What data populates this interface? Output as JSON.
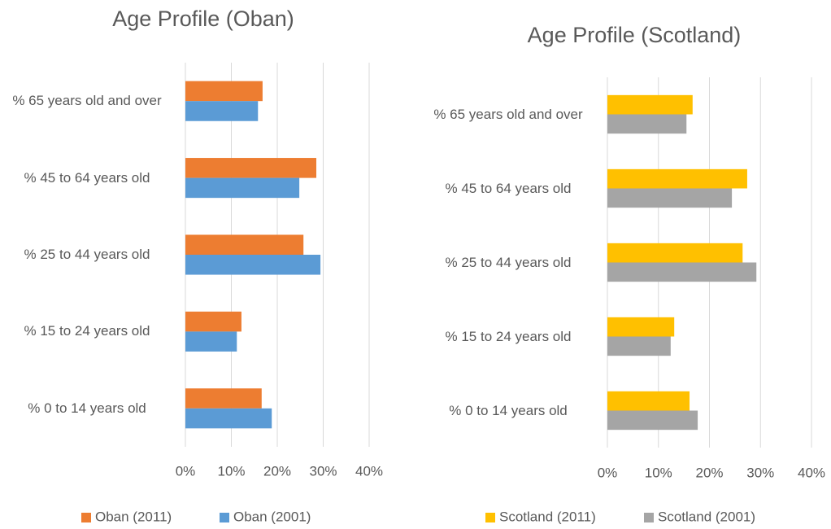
{
  "chart_data": [
    {
      "type": "bar",
      "orientation": "horizontal",
      "title": "Age Profile (Oban)",
      "categories": [
        "% 65 years old and over",
        "% 45 to 64 years old",
        "% 25 to 44 years old",
        "% 15 to 24 years old",
        "% 0 to 14 years old"
      ],
      "series": [
        {
          "name": "Oban (2011)",
          "color": "#ed7d31",
          "values": [
            16.8,
            28.5,
            25.7,
            12.2,
            16.6
          ]
        },
        {
          "name": "Oban (2001)",
          "color": "#5b9bd5",
          "values": [
            15.8,
            24.8,
            29.4,
            11.2,
            18.8
          ]
        }
      ],
      "xlim": [
        0,
        40
      ],
      "xticks": [
        {
          "value": 0,
          "label": "0%"
        },
        {
          "value": 10,
          "label": "10%"
        },
        {
          "value": 20,
          "label": "20%"
        },
        {
          "value": 30,
          "label": "30%"
        },
        {
          "value": 40,
          "label": "40%"
        }
      ],
      "grid": true,
      "legend": "bottom"
    },
    {
      "type": "bar",
      "orientation": "horizontal",
      "title": "Age Profile (Scotland)",
      "categories": [
        "% 65 years old and over",
        "% 45 to 64 years old",
        "% 25 to 44 years old",
        "% 15 to 24 years old",
        "% 0 to 14 years old"
      ],
      "series": [
        {
          "name": "Scotland (2011)",
          "color": "#ffc000",
          "values": [
            16.7,
            27.4,
            26.5,
            13.1,
            16.1
          ]
        },
        {
          "name": "Scotland (2001)",
          "color": "#a5a5a5",
          "values": [
            15.5,
            24.4,
            29.2,
            12.4,
            17.7
          ]
        }
      ],
      "xlim": [
        0,
        40
      ],
      "xticks": [
        {
          "value": 0,
          "label": "0%"
        },
        {
          "value": 10,
          "label": "10%"
        },
        {
          "value": 20,
          "label": "20%"
        },
        {
          "value": 30,
          "label": "30%"
        },
        {
          "value": 40,
          "label": "40%"
        }
      ],
      "grid": true,
      "legend": "bottom"
    }
  ]
}
